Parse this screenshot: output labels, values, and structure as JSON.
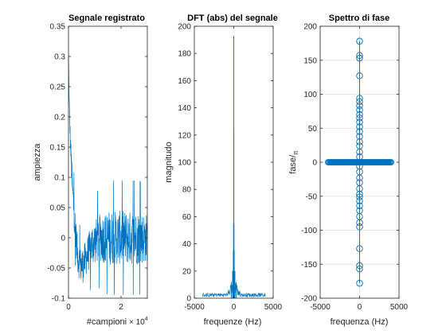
{
  "chart_data": [
    {
      "type": "line",
      "title": "Segnale registrato",
      "xlabel": "#campioni",
      "ylabel": "ampiezza",
      "x_exponent_label": "× 10",
      "x_exponent_power": "4",
      "x_scale": 10000,
      "xlim": [
        0,
        30000
      ],
      "ylim": [
        -0.1,
        0.35
      ],
      "xticks": [
        0,
        2
      ],
      "xtick_labels": [
        "0",
        "2"
      ],
      "yticks": [
        -0.1,
        -0.05,
        0,
        0.05,
        0.1,
        0.15,
        0.2,
        0.25,
        0.3,
        0.35
      ],
      "ytick_labels": [
        "-0.1",
        "-0.05",
        "0",
        "0.05",
        "0.1",
        "0.15",
        "0.2",
        "0.25",
        "0.3",
        "0.35"
      ],
      "series": [
        {
          "color": "#0072BD",
          "envelope": {
            "x": [
              0,
              300,
              800,
              1500,
              2500,
              3500,
              4500,
              5500,
              7000,
              9000,
              12000,
              15000,
              18000,
              21000,
              24000,
              27000,
              30000
            ],
            "mean": [
              0.3,
              0.22,
              0.15,
              0.08,
              0.02,
              -0.03,
              -0.045,
              -0.045,
              -0.03,
              -0.01,
              0.0,
              0.0,
              0.0,
              0.0,
              0.0,
              0.0,
              0.0
            ],
            "spread": [
              0.01,
              0.01,
              0.02,
              0.03,
              0.03,
              0.03,
              0.03,
              0.03,
              0.03,
              0.035,
              0.04,
              0.045,
              0.045,
              0.045,
              0.045,
              0.045,
              0.04
            ]
          }
        }
      ]
    },
    {
      "type": "line",
      "title": "DFT (abs) del segnale",
      "xlabel": "frequenze (Hz)",
      "ylabel": "magnitudo",
      "xlim": [
        -5000,
        5000
      ],
      "ylim": [
        0,
        200
      ],
      "xticks": [
        -5000,
        0,
        5000
      ],
      "xtick_labels": [
        "-5000",
        "0",
        "5000"
      ],
      "yticks": [
        0,
        20,
        40,
        60,
        80,
        100,
        120,
        140,
        160,
        180,
        200
      ],
      "ytick_labels": [
        "0",
        "20",
        "40",
        "60",
        "80",
        "100",
        "120",
        "140",
        "160",
        "180",
        "200"
      ],
      "series": [
        {
          "color": "#0072BD",
          "peak_frequency": 0,
          "peak_value": 193,
          "spikes": [
            {
              "x": -60,
              "y": 35
            },
            {
              "x": -30,
              "y": 55
            },
            {
              "x": -10,
              "y": 125
            },
            {
              "x": 0,
              "y": 193
            },
            {
              "x": 10,
              "y": 125
            },
            {
              "x": 30,
              "y": 55
            },
            {
              "x": 60,
              "y": 35
            },
            {
              "x": -150,
              "y": 20
            },
            {
              "x": 150,
              "y": 20
            },
            {
              "x": -300,
              "y": 12
            },
            {
              "x": 300,
              "y": 12
            }
          ],
          "noise_floor_range": [
            -4000,
            4000
          ],
          "noise_floor_level": 3
        }
      ]
    },
    {
      "type": "scatter",
      "title": "Spettro di fase",
      "xlabel": "frequenza (Hz)",
      "ylabel_main": "fase/",
      "ylabel_sub": "π",
      "xlim": [
        -5000,
        5000
      ],
      "ylim": [
        -200,
        200
      ],
      "grid": true,
      "xticks": [
        -5000,
        0,
        5000
      ],
      "xtick_labels": [
        "-5000",
        "0",
        "5000"
      ],
      "yticks": [
        -200,
        -150,
        -100,
        -50,
        0,
        50,
        100,
        150,
        200
      ],
      "ytick_labels": [
        "-200",
        "-150",
        "-100",
        "-50",
        "0",
        "50",
        "100",
        "150",
        "200"
      ],
      "series": [
        {
          "color": "#0072BD",
          "marker": "circle",
          "baseline_range": [
            -4000,
            4000
          ],
          "baseline_value": 0,
          "vertical_points_x": 0,
          "vertical_points_y": [
            178,
            157,
            153,
            127,
            94,
            89,
            83,
            77,
            70,
            65,
            59,
            52,
            45,
            38,
            30,
            24,
            15,
            8,
            -6,
            -14,
            -23,
            -30,
            -39,
            -47,
            -51,
            -57,
            -64,
            -71,
            -80,
            -89,
            -95,
            -127,
            -152,
            -157,
            -178
          ]
        }
      ]
    }
  ]
}
